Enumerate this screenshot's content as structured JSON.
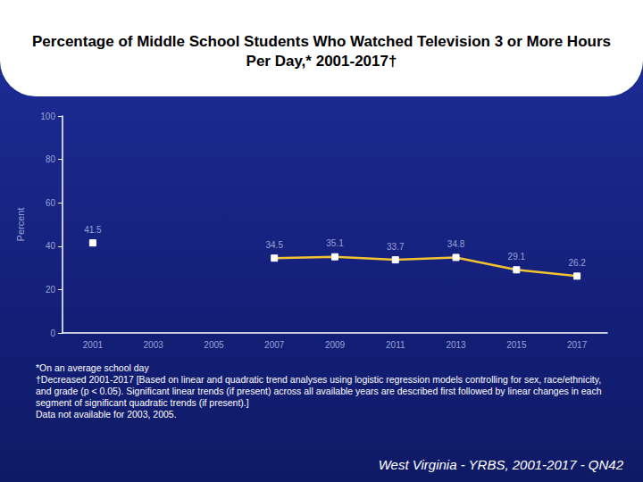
{
  "chart_data": {
    "type": "line",
    "title": "Percentage of Middle School Students Who Watched Television 3 or More Hours Per Day,* 2001-2017†",
    "y_label": "Percent",
    "categories": [
      "2001",
      "2003",
      "2005",
      "2007",
      "2009",
      "2011",
      "2013",
      "2015",
      "2017"
    ],
    "values": [
      41.5,
      null,
      null,
      34.5,
      35.1,
      33.7,
      34.8,
      29.1,
      26.2
    ],
    "color": "#f2c230",
    "marker": "square",
    "data_labels": true,
    "ylim": [
      0,
      100
    ],
    "yticks": [
      0,
      20,
      40,
      60,
      80,
      100
    ],
    "notes": [
      "*On an average school day",
      "†Decreased 2001-2017 [Based on linear and quadratic trend analyses using logistic regression models controlling for sex, race/ethnicity, and grade (p < 0.05). Significant linear trends (if present) across all available years are described first followed by linear changes in each segment of significant quadratic trends (if present).]",
      "Data not available for 2003, 2005."
    ],
    "source": "West Virginia - YRBS, 2001-2017 - QN42"
  }
}
